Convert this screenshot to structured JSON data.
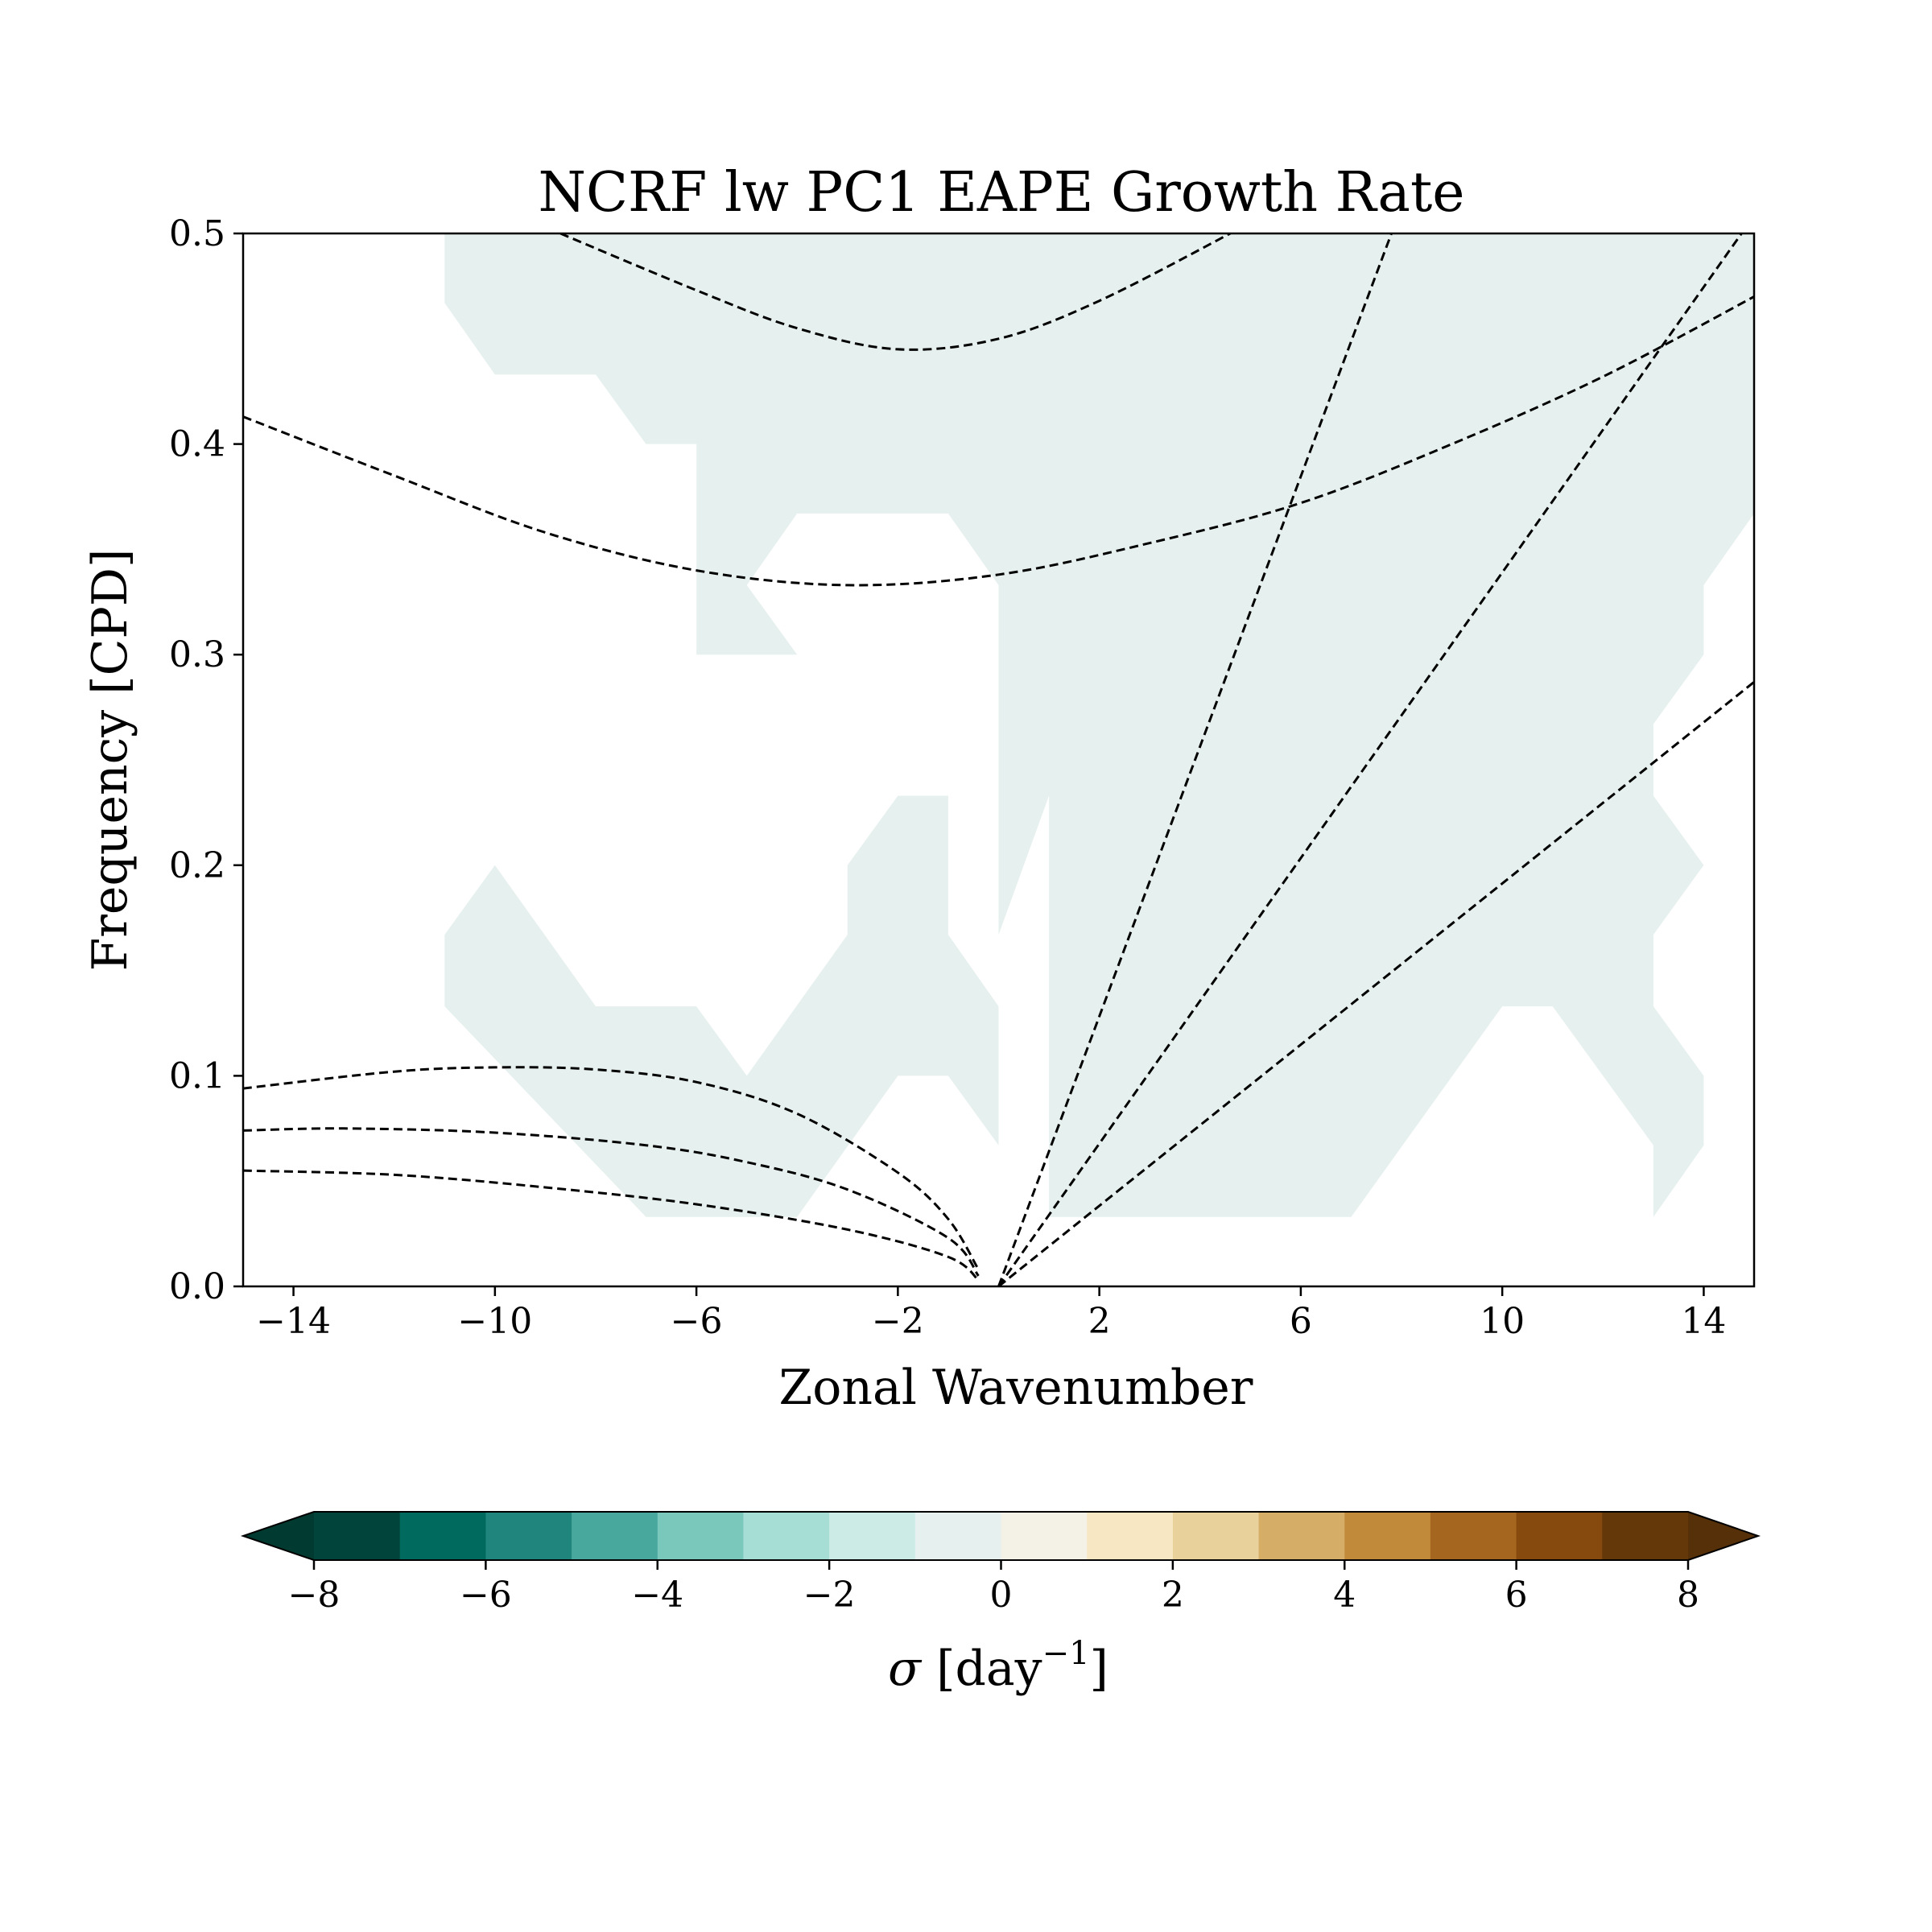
{
  "chart_data": {
    "type": "heatmap",
    "title": "NCRF lw PC1 EAPE Growth Rate",
    "xlabel": "Zonal Wavenumber",
    "ylabel": "Frequency [CPD]",
    "xlim": [
      -15,
      15
    ],
    "ylim": [
      0,
      0.5
    ],
    "xticks": [
      -14,
      -10,
      -6,
      -2,
      2,
      6,
      10,
      14
    ],
    "xtick_labels": [
      "−14",
      "−10",
      "−6",
      "−2",
      "2",
      "6",
      "10",
      "14"
    ],
    "yticks": [
      0.0,
      0.1,
      0.2,
      0.3,
      0.4,
      0.5
    ],
    "ytick_labels": [
      "0.0",
      "0.1",
      "0.2",
      "0.3",
      "0.4",
      "0.5"
    ],
    "grid": false,
    "filled_regions": [
      {
        "level_range": [
          -1,
          0
        ],
        "color": "#e6f0ee",
        "polygons": [
          [
            [
              -11,
              0.5
            ],
            [
              -11,
              0.467
            ],
            [
              -10,
              0.433
            ],
            [
              -8,
              0.433
            ],
            [
              -7,
              0.4
            ],
            [
              -6,
              0.4
            ],
            [
              -6,
              0.3
            ],
            [
              -4,
              0.3
            ],
            [
              -5,
              0.333
            ],
            [
              -4,
              0.367
            ],
            [
              -1,
              0.367
            ],
            [
              0,
              0.333
            ],
            [
              0,
              0.167
            ],
            [
              1,
              0.233
            ],
            [
              1,
              0.033
            ],
            [
              7,
              0.033
            ],
            [
              10,
              0.133
            ],
            [
              11,
              0.133
            ],
            [
              13,
              0.067
            ],
            [
              13,
              0.033
            ],
            [
              14,
              0.067
            ],
            [
              14,
              0.1
            ],
            [
              13,
              0.133
            ],
            [
              13,
              0.167
            ],
            [
              14,
              0.2
            ],
            [
              13,
              0.233
            ],
            [
              13,
              0.267
            ],
            [
              14,
              0.3
            ],
            [
              14,
              0.333
            ],
            [
              15,
              0.367
            ],
            [
              15,
              0.5
            ]
          ],
          [
            [
              -11,
              0.167
            ],
            [
              -10,
              0.2
            ],
            [
              -8,
              0.133
            ],
            [
              -6,
              0.133
            ],
            [
              -5,
              0.1
            ],
            [
              -3,
              0.167
            ],
            [
              -3,
              0.2
            ],
            [
              -2,
              0.233
            ],
            [
              -1,
              0.233
            ],
            [
              -1,
              0.167
            ],
            [
              0,
              0.133
            ],
            [
              0,
              0.067
            ],
            [
              -1,
              0.1
            ],
            [
              -2,
              0.1
            ],
            [
              -4,
              0.033
            ],
            [
              -7,
              0.033
            ],
            [
              -11,
              0.133
            ]
          ]
        ]
      }
    ],
    "dispersion_curves": [
      {
        "style": "dashed",
        "points": [
          [
            -8.7,
            0.5
          ],
          [
            -6,
            0.473
          ],
          [
            -4,
            0.455
          ],
          [
            -2,
            0.445
          ],
          [
            0,
            0.45
          ],
          [
            2,
            0.468
          ],
          [
            4.6,
            0.5
          ]
        ]
      },
      {
        "style": "dashed",
        "points": [
          [
            -15,
            0.413
          ],
          [
            -12,
            0.385
          ],
          [
            -9,
            0.358
          ],
          [
            -6,
            0.34
          ],
          [
            -3,
            0.333
          ],
          [
            0,
            0.338
          ],
          [
            3,
            0.353
          ],
          [
            6,
            0.372
          ],
          [
            9,
            0.4
          ],
          [
            12,
            0.432
          ],
          [
            15,
            0.47
          ]
        ]
      },
      {
        "style": "dashed",
        "points": [
          [
            -15,
            0.094
          ],
          [
            -12,
            0.102
          ],
          [
            -10,
            0.104
          ],
          [
            -8,
            0.103
          ],
          [
            -6,
            0.097
          ],
          [
            -4,
            0.082
          ],
          [
            -2,
            0.054
          ],
          [
            -1,
            0.032
          ],
          [
            -0.4,
            0.008
          ]
        ]
      },
      {
        "style": "dashed",
        "points": [
          [
            -15,
            0.074
          ],
          [
            -13,
            0.075
          ],
          [
            -10,
            0.073
          ],
          [
            -7,
            0.067
          ],
          [
            -5,
            0.059
          ],
          [
            -3,
            0.046
          ],
          [
            -1,
            0.023
          ],
          [
            -0.4,
            0.005
          ]
        ]
      },
      {
        "style": "dashed",
        "points": [
          [
            -15,
            0.055
          ],
          [
            -12,
            0.053
          ],
          [
            -9,
            0.047
          ],
          [
            -6,
            0.039
          ],
          [
            -3,
            0.027
          ],
          [
            -1,
            0.014
          ],
          [
            -0.4,
            0.003
          ]
        ]
      },
      {
        "style": "dashed",
        "points": [
          [
            0,
            0
          ],
          [
            7.8,
            0.5
          ]
        ]
      },
      {
        "style": "dashed",
        "points": [
          [
            0,
            0
          ],
          [
            14.75,
            0.5
          ]
        ]
      },
      {
        "style": "dashed",
        "points": [
          [
            0,
            0
          ],
          [
            15,
            0.287
          ]
        ]
      }
    ],
    "colorbar": {
      "label_symbol": "σ",
      "label_text": " [day",
      "label_exponent": "−1",
      "label_close": "]",
      "extend": "both",
      "levels": [
        -8,
        -7,
        -6,
        -5,
        -4,
        -3,
        -2,
        -1,
        0,
        1,
        2,
        3,
        4,
        5,
        6,
        7,
        8
      ],
      "ticks": [
        -8,
        -6,
        -4,
        -2,
        0,
        2,
        4,
        6,
        8
      ],
      "tick_labels": [
        "−8",
        "−6",
        "−4",
        "−2",
        "0",
        "2",
        "4",
        "6",
        "8"
      ],
      "colors": [
        "#00443c",
        "#016a5f",
        "#20857c",
        "#48a89e",
        "#7ac7bc",
        "#a6ddd5",
        "#cdebe6",
        "#e6f0ee",
        "#f4f1e6",
        "#f7e8c3",
        "#e8d19b",
        "#d6ad66",
        "#c08a3a",
        "#a5661f",
        "#86490e",
        "#643808"
      ],
      "under_color": "#003a30",
      "over_color": "#553008"
    }
  }
}
